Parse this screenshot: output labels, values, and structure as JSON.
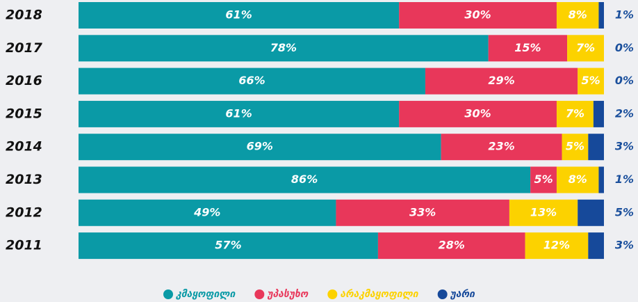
{
  "chart_data": {
    "type": "stacked-bar-horizontal",
    "categories": [
      "2018",
      "2017",
      "2016",
      "2015",
      "2014",
      "2013",
      "2012",
      "2011"
    ],
    "series": [
      {
        "name": "კმაყოფილი",
        "color": "#0a9aa6",
        "values": [
          61,
          78,
          66,
          61,
          69,
          86,
          49,
          57
        ]
      },
      {
        "name": "უპასუხო",
        "color": "#e8375a",
        "values": [
          30,
          15,
          29,
          30,
          23,
          5,
          33,
          28
        ]
      },
      {
        "name": "არაკმაყოფილი",
        "color": "#fcd200",
        "values": [
          8,
          7,
          5,
          7,
          5,
          8,
          13,
          12
        ]
      },
      {
        "name": "უარი",
        "color": "#16499a",
        "values": [
          1,
          0,
          0,
          2,
          3,
          1,
          5,
          3
        ]
      }
    ],
    "value_labels": [
      [
        "61%",
        "78%",
        "66%",
        "61%",
        "69%",
        "86%",
        "49%",
        "57%"
      ],
      [
        "30%",
        "15%",
        "29%",
        "30%",
        "23%",
        "5%",
        "33%",
        "28%"
      ],
      [
        "8%",
        "7%",
        "5%",
        "7%",
        "5%",
        "8%",
        "13%",
        "12%"
      ],
      [
        "1%",
        "0%",
        "0%",
        "2%",
        "3%",
        "1%",
        "5%",
        "3%"
      ]
    ],
    "xlim": [
      0,
      100
    ]
  }
}
